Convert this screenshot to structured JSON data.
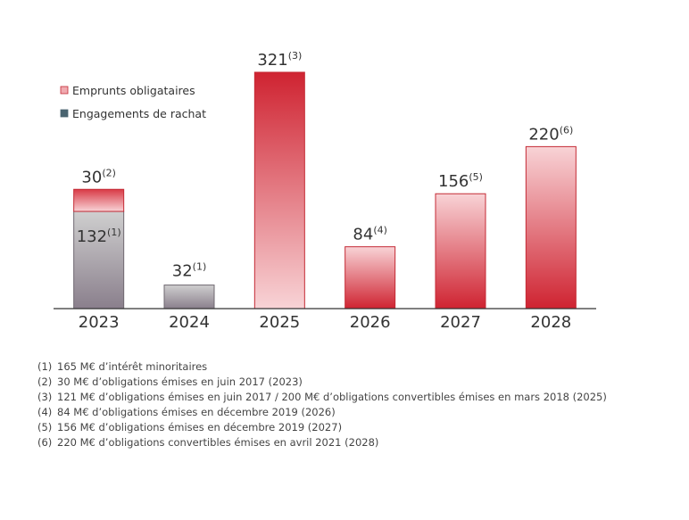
{
  "chart_data": {
    "type": "bar",
    "stacked": true,
    "categories": [
      "2023",
      "2024",
      "2025",
      "2026",
      "2027",
      "2028"
    ],
    "series": [
      {
        "name": "Engagements de rachat",
        "color": "#8a7f8c",
        "values": [
          132,
          32,
          0,
          0,
          0,
          0
        ],
        "labels": [
          {
            "value": "132",
            "note": "(1)"
          },
          {
            "value": "32",
            "note": "(1)"
          },
          null,
          null,
          null,
          null
        ]
      },
      {
        "name": "Emprunts obligataires",
        "color": "#d0202e",
        "values": [
          30,
          0,
          321,
          84,
          156,
          220
        ],
        "labels": [
          {
            "value": "30",
            "note": "(2)"
          },
          null,
          {
            "value": "321",
            "note": "(3)"
          },
          {
            "value": "84",
            "note": "(4)"
          },
          {
            "value": "156",
            "note": "(5)"
          },
          {
            "value": "220",
            "note": "(6)"
          }
        ]
      }
    ],
    "ylim": [
      0,
      321
    ],
    "grid": false,
    "legend_position": "top-left",
    "legend_order": [
      "Emprunts obligataires",
      "Engagements de rachat"
    ]
  },
  "footnotes": [
    {
      "num": "(1)",
      "text": "165 M€ d’intérêt minoritaires"
    },
    {
      "num": "(2)",
      "text": "30 M€ d’obligations émises en juin 2017 (2023)"
    },
    {
      "num": "(3)",
      "text": "121 M€ d’obligations émises en juin 2017 / 200 M€ d’obligations convertibles émises en mars 2018 (2025)"
    },
    {
      "num": "(4)",
      "text": "84 M€ d’obligations émises en décembre 2019 (2026)"
    },
    {
      "num": "(5)",
      "text": "156 M€ d’obligations émises en décembre 2019 (2027)"
    },
    {
      "num": "(6)",
      "text": "220 M€ d’obligations convertibles émises en avril 2021 (2028)"
    }
  ]
}
